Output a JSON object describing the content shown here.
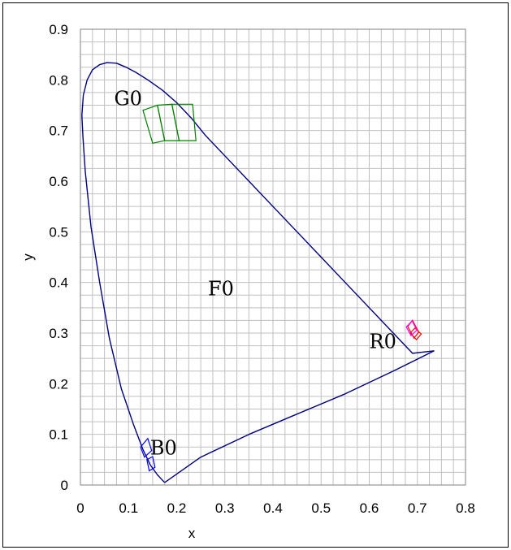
{
  "chart_data": {
    "type": "scatter",
    "title": "",
    "xlabel": "x",
    "ylabel": "y",
    "xlim": [
      0,
      0.8
    ],
    "ylim": [
      0,
      0.9
    ],
    "x_ticks": [
      "0",
      "0.1",
      "0.2",
      "0.3",
      "0.4",
      "0.5",
      "0.6",
      "0.7",
      "0.8"
    ],
    "y_ticks": [
      "0",
      "0.1",
      "0.2",
      "0.3",
      "0.4",
      "0.5",
      "0.6",
      "0.7",
      "0.8",
      "0.9"
    ],
    "minor_grid_step": 0.025,
    "grid": true,
    "legend": "none",
    "colors": {
      "locus": "#000080",
      "green_region": "#008000",
      "blue_region": "#0000ff",
      "red_region": "#ff0000",
      "magenta_region": "#ff00ff",
      "grid": "#c0c0c0"
    },
    "series": [
      {
        "kind": "spectral-locus",
        "x": [
          0.175,
          0.17,
          0.16,
          0.145,
          0.13,
          0.11,
          0.085,
          0.06,
          0.04,
          0.022,
          0.01,
          0.005,
          0.003,
          0.006,
          0.014,
          0.025,
          0.04,
          0.055,
          0.075,
          0.095,
          0.115,
          0.14,
          0.17,
          0.2,
          0.23,
          0.26,
          0.3,
          0.35,
          0.4,
          0.45,
          0.5,
          0.55,
          0.6,
          0.65,
          0.69,
          0.735
        ],
        "y": [
          0.005,
          0.01,
          0.02,
          0.04,
          0.07,
          0.12,
          0.19,
          0.29,
          0.4,
          0.51,
          0.62,
          0.69,
          0.73,
          0.77,
          0.8,
          0.82,
          0.83,
          0.834,
          0.833,
          0.825,
          0.815,
          0.8,
          0.78,
          0.755,
          0.725,
          0.69,
          0.65,
          0.6,
          0.55,
          0.5,
          0.45,
          0.4,
          0.35,
          0.3,
          0.26,
          0.265
        ]
      },
      {
        "kind": "purple-line",
        "x": [
          0.735,
          0.65,
          0.55,
          0.45,
          0.35,
          0.25,
          0.175
        ],
        "y": [
          0.265,
          0.225,
          0.18,
          0.14,
          0.1,
          0.055,
          0.005
        ]
      }
    ],
    "regions": [
      {
        "name": "G0",
        "color": "#008000",
        "polygons": [
          {
            "x": [
              0.13,
              0.16,
              0.175,
              0.15
            ],
            "y": [
              0.74,
              0.75,
              0.68,
              0.675
            ]
          },
          {
            "x": [
              0.16,
              0.19,
              0.205,
              0.175
            ],
            "y": [
              0.75,
              0.752,
              0.68,
              0.68
            ]
          },
          {
            "x": [
              0.19,
              0.233,
              0.24,
              0.205
            ],
            "y": [
              0.752,
              0.752,
              0.68,
              0.68
            ]
          }
        ]
      },
      {
        "name": "B0",
        "color": "#0000ff",
        "polygons": [
          {
            "x": [
              0.125,
              0.14,
              0.148,
              0.133
            ],
            "y": [
              0.075,
              0.092,
              0.068,
              0.055
            ]
          },
          {
            "x": [
              0.138,
              0.15,
              0.155,
              0.143
            ],
            "y": [
              0.05,
              0.056,
              0.035,
              0.028
            ]
          }
        ]
      },
      {
        "name": "R0",
        "color": "#ff0000",
        "polygons": [
          {
            "x": [
              0.68,
              0.69,
              0.703,
              0.693
            ],
            "y": [
              0.313,
              0.325,
              0.302,
              0.29
            ]
          },
          {
            "x": [
              0.685,
              0.695,
              0.708,
              0.698
            ],
            "y": [
              0.3,
              0.31,
              0.298,
              0.287
            ]
          }
        ]
      },
      {
        "name": "R0-magenta",
        "color": "#ff00ff",
        "polygons": [
          {
            "x": [
              0.677,
              0.689,
              0.699,
              0.687
            ],
            "y": [
              0.312,
              0.324,
              0.306,
              0.295
            ]
          }
        ]
      }
    ],
    "annotations": [
      {
        "text": "G0",
        "x": 0.07,
        "y": 0.75
      },
      {
        "text": "F0",
        "x": 0.265,
        "y": 0.375
      },
      {
        "text": "R0",
        "x": 0.6,
        "y": 0.27
      },
      {
        "text": "B0",
        "x": 0.145,
        "y": 0.06
      }
    ]
  }
}
